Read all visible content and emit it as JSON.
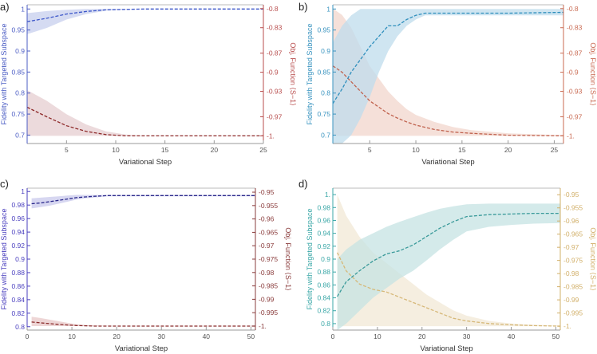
{
  "figure": {
    "panels_count": 4
  },
  "chart_data": [
    {
      "panel_label": "a)",
      "type": "line",
      "xlabel": "Variational Step",
      "ylabel_left": "Fidelity with Targeted Subspace",
      "ylabel_right": "Obj. Function ⟨S−1⟩",
      "xlim": [
        1,
        25
      ],
      "xticks": [
        5,
        10,
        15,
        20,
        25
      ],
      "ylim_left": [
        0.68,
        1.01
      ],
      "yticks_left": [
        0.7,
        0.75,
        0.8,
        0.85,
        0.9,
        0.95,
        1
      ],
      "yticklabels_left": [
        "0.7",
        "0.75",
        "0.8",
        "0.85",
        "0.9",
        "0.95",
        "1"
      ],
      "ylim_right": [
        -1.012,
        -0.794
      ],
      "yticks_right": [
        -1.0,
        -0.97,
        -0.93,
        -0.9,
        -0.87,
        -0.83,
        -0.8
      ],
      "yticklabels_right": [
        "-1.",
        "-0.97",
        "-0.93",
        "-0.9",
        "-0.87",
        "-0.83",
        "-0.8"
      ],
      "colors": {
        "fidelity": "#3b55c9",
        "fidelity_band": "#c7cfee",
        "objective": "#8e2a2a",
        "objective_band": "#e6cdd0",
        "left_axis": "#4b5cc4",
        "right_axis": "#b84d4d"
      },
      "series": [
        {
          "name": "Fidelity",
          "axis": "left",
          "x": [
            1,
            3,
            5,
            7,
            9,
            11,
            13,
            15,
            20,
            25
          ],
          "values": [
            0.97,
            0.978,
            0.988,
            0.994,
            0.998,
            0.999,
            1.0,
            1.0,
            1.0,
            1.0
          ],
          "lower": [
            0.94,
            0.955,
            0.975,
            0.988,
            0.996,
            0.999,
            1.0,
            1.0,
            1.0,
            1.0
          ],
          "upper": [
            0.99,
            0.995,
            0.998,
            1.0,
            1.0,
            1.0,
            1.0,
            1.0,
            1.0,
            1.0
          ]
        },
        {
          "name": "Objective",
          "axis": "right",
          "x": [
            1,
            3,
            5,
            7,
            9,
            11,
            13,
            15,
            20,
            25
          ],
          "values": [
            -0.955,
            -0.97,
            -0.984,
            -0.993,
            -0.998,
            -1.0,
            -1.0,
            -1.0,
            -1.0,
            -1.0
          ],
          "lower": [
            -1.0,
            -1.0,
            -1.0,
            -1.0,
            -1.0,
            -1.0,
            -1.0,
            -1.0,
            -1.0,
            -1.0
          ],
          "upper": [
            -0.928,
            -0.945,
            -0.966,
            -0.982,
            -0.993,
            -0.998,
            -1.0,
            -1.0,
            -1.0,
            -1.0
          ]
        }
      ]
    },
    {
      "panel_label": "b)",
      "type": "line",
      "xlabel": "Variational Step",
      "ylabel_left": "Fidelity with Targeted Subspace",
      "ylabel_right": "Obj. Function ⟨S−1⟩",
      "xlim": [
        1,
        26
      ],
      "xticks": [
        5,
        10,
        15,
        20,
        25
      ],
      "ylim_left": [
        0.68,
        1.01
      ],
      "yticks_left": [
        0.7,
        0.75,
        0.8,
        0.85,
        0.9,
        0.95,
        1
      ],
      "yticklabels_left": [
        "0.7",
        "0.75",
        "0.8",
        "0.85",
        "0.9",
        "0.95",
        "1"
      ],
      "ylim_right": [
        -1.012,
        -0.794
      ],
      "yticks_right": [
        -1.0,
        -0.97,
        -0.93,
        -0.9,
        -0.87,
        -0.83,
        -0.8
      ],
      "yticklabels_right": [
        "-1.",
        "-0.97",
        "-0.93",
        "-0.9",
        "-0.87",
        "-0.83",
        "-0.8"
      ],
      "colors": {
        "fidelity": "#2f8fbd",
        "fidelity_band": "#bfdcec",
        "objective": "#c0624e",
        "objective_band": "#f2d6cc",
        "left_axis": "#3a94c0",
        "right_axis": "#c96a52"
      },
      "series": [
        {
          "name": "Fidelity",
          "axis": "left",
          "x": [
            1,
            2,
            3,
            4,
            5,
            6,
            7,
            8,
            9,
            10,
            11,
            13,
            16,
            20,
            26
          ],
          "values": [
            0.775,
            0.81,
            0.85,
            0.88,
            0.91,
            0.935,
            0.96,
            0.96,
            0.975,
            0.985,
            0.99,
            0.99,
            0.99,
            0.99,
            0.992
          ],
          "lower": [
            0.68,
            0.68,
            0.7,
            0.74,
            0.79,
            0.85,
            0.9,
            0.935,
            0.96,
            0.975,
            0.985,
            0.985,
            0.985,
            0.985,
            0.985
          ],
          "upper": [
            0.92,
            0.96,
            0.985,
            1.0,
            1.0,
            1.0,
            1.0,
            1.0,
            1.0,
            1.0,
            1.0,
            1.0,
            1.0,
            1.0,
            1.0
          ]
        },
        {
          "name": "Objective",
          "axis": "right",
          "x": [
            1,
            2,
            3,
            4,
            5,
            6,
            7,
            8,
            9,
            10,
            12,
            14,
            16,
            20,
            26
          ],
          "values": [
            -0.89,
            -0.9,
            -0.915,
            -0.93,
            -0.945,
            -0.955,
            -0.965,
            -0.972,
            -0.978,
            -0.983,
            -0.99,
            -0.994,
            -0.996,
            -0.999,
            -1.0
          ],
          "lower": [
            -1.0,
            -1.0,
            -1.0,
            -1.0,
            -1.0,
            -1.0,
            -1.0,
            -1.0,
            -1.0,
            -1.0,
            -1.0,
            -1.0,
            -1.0,
            -1.0,
            -1.0
          ],
          "upper": [
            -0.8,
            -0.81,
            -0.83,
            -0.86,
            -0.89,
            -0.91,
            -0.93,
            -0.945,
            -0.958,
            -0.967,
            -0.978,
            -0.986,
            -0.991,
            -0.996,
            -0.999
          ]
        }
      ]
    },
    {
      "panel_label": "c)",
      "type": "line",
      "xlabel": "Variational Step",
      "ylabel_left": "Fidelity with Targeted Subspace",
      "ylabel_right": "Obj. Function ⟨S−1⟩",
      "xlim": [
        0,
        51
      ],
      "xticks": [
        0,
        10,
        20,
        30,
        40,
        50
      ],
      "ylim_left": [
        0.795,
        1.005
      ],
      "yticks_left": [
        0.8,
        0.82,
        0.84,
        0.86,
        0.88,
        0.9,
        0.92,
        0.94,
        0.96,
        0.98,
        1
      ],
      "yticklabels_left": [
        "0.8",
        "0.82",
        "0.84",
        "0.86",
        "0.88",
        "0.9",
        "0.92",
        "0.94",
        "0.96",
        "0.98",
        "1"
      ],
      "ylim_right": [
        -1.0015,
        -0.9485
      ],
      "yticks_right": [
        -1.0,
        -0.995,
        -0.99,
        -0.985,
        -0.98,
        -0.975,
        -0.97,
        -0.965,
        -0.96,
        -0.955,
        -0.95
      ],
      "yticklabels_right": [
        "-1.",
        "-0.995",
        "-0.99",
        "-0.985",
        "-0.98",
        "-0.975",
        "-0.97",
        "-0.965",
        "-0.96",
        "-0.955",
        "-0.95"
      ],
      "colors": {
        "fidelity": "#2c2a8c",
        "fidelity_band": "#c9c9ec",
        "objective": "#8a2c2c",
        "objective_band": "#e8c8c8",
        "left_axis": "#4a3fbf",
        "right_axis": "#8a3c3c"
      },
      "series": [
        {
          "name": "Fidelity",
          "axis": "left",
          "x": [
            1,
            3,
            5,
            7,
            9,
            11,
            13,
            15,
            18,
            22,
            30,
            40,
            51
          ],
          "values": [
            0.982,
            0.983,
            0.985,
            0.987,
            0.989,
            0.991,
            0.992,
            0.993,
            0.994,
            0.994,
            0.994,
            0.994,
            0.994
          ],
          "lower": [
            0.975,
            0.977,
            0.979,
            0.982,
            0.985,
            0.988,
            0.99,
            0.991,
            0.993,
            0.993,
            0.993,
            0.993,
            0.993
          ],
          "upper": [
            0.99,
            0.991,
            0.992,
            0.993,
            0.994,
            0.995,
            0.995,
            0.995,
            0.995,
            0.995,
            0.995,
            0.995,
            0.995
          ]
        },
        {
          "name": "Objective",
          "axis": "right",
          "x": [
            1,
            3,
            5,
            7,
            9,
            11,
            13,
            15,
            20,
            30,
            40,
            51
          ],
          "values": [
            -0.9985,
            -0.9988,
            -0.9991,
            -0.9994,
            -0.9996,
            -0.9998,
            -0.9999,
            -1.0,
            -1.0,
            -1.0,
            -1.0,
            -1.0
          ],
          "lower": [
            -1.0,
            -1.0,
            -1.0,
            -1.0,
            -1.0,
            -1.0,
            -1.0,
            -1.0,
            -1.0,
            -1.0,
            -1.0,
            -1.0
          ],
          "upper": [
            -0.9965,
            -0.997,
            -0.9976,
            -0.9982,
            -0.9988,
            -0.9993,
            -0.9996,
            -0.9998,
            -1.0,
            -1.0,
            -1.0,
            -1.0
          ]
        }
      ]
    },
    {
      "panel_label": "d)",
      "type": "line",
      "xlabel": "Variational Step",
      "ylabel_left": "Fidelity with Targeted Subspace",
      "ylabel_right": "Obj. Function ⟨S−1⟩",
      "xlim": [
        0,
        51
      ],
      "xticks": [
        0,
        10,
        20,
        30,
        40,
        50
      ],
      "ylim_left": [
        0.79,
        1.01
      ],
      "yticks_left": [
        0.8,
        0.82,
        0.84,
        0.86,
        0.88,
        0.9,
        0.92,
        0.94,
        0.96,
        0.98,
        1
      ],
      "yticklabels_left": [
        "0.8",
        "0.82",
        "0.84",
        "0.86",
        "0.88",
        "0.9",
        "0.92",
        "0.94",
        "0.96",
        "0.98",
        "1."
      ],
      "ylim_right": [
        -1.0015,
        -0.9475
      ],
      "yticks_right": [
        -1.0,
        -0.995,
        -0.99,
        -0.985,
        -0.98,
        -0.975,
        -0.97,
        -0.965,
        -0.96,
        -0.955,
        -0.95
      ],
      "yticklabels_right": [
        "-1.",
        "-0.995",
        "-0.99",
        "-0.985",
        "-0.98",
        "-0.975",
        "-0.97",
        "-0.965",
        "-0.96",
        "-0.955",
        "-0.95"
      ],
      "colors": {
        "fidelity": "#3a9a9a",
        "fidelity_band": "#c6e3e3",
        "objective": "#d6b878",
        "objective_band": "#f1e8d6",
        "left_axis": "#3aa7a7",
        "right_axis": "#d2b06a"
      },
      "series": [
        {
          "name": "Fidelity",
          "axis": "left",
          "x": [
            1,
            3,
            6,
            9,
            12,
            15,
            18,
            21,
            24,
            27,
            30,
            35,
            40,
            45,
            51
          ],
          "values": [
            0.842,
            0.865,
            0.882,
            0.897,
            0.908,
            0.913,
            0.922,
            0.935,
            0.948,
            0.958,
            0.966,
            0.969,
            0.97,
            0.971,
            0.971
          ],
          "lower": [
            0.79,
            0.8,
            0.82,
            0.84,
            0.855,
            0.87,
            0.882,
            0.898,
            0.915,
            0.93,
            0.943,
            0.95,
            0.953,
            0.955,
            0.956
          ],
          "upper": [
            0.9,
            0.915,
            0.93,
            0.94,
            0.95,
            0.958,
            0.965,
            0.972,
            0.978,
            0.982,
            0.985,
            0.986,
            0.986,
            0.986,
            0.986
          ]
        },
        {
          "name": "Objective",
          "axis": "right",
          "x": [
            1,
            3,
            6,
            9,
            12,
            15,
            18,
            21,
            24,
            27,
            30,
            35,
            40,
            45,
            51
          ],
          "values": [
            -0.972,
            -0.979,
            -0.984,
            -0.986,
            -0.987,
            -0.989,
            -0.991,
            -0.993,
            -0.995,
            -0.997,
            -0.998,
            -0.999,
            -0.9995,
            -0.9998,
            -1.0
          ],
          "lower": [
            -1.0,
            -1.0,
            -1.0,
            -1.0,
            -1.0,
            -1.0,
            -1.0,
            -1.0,
            -1.0,
            -1.0,
            -1.0,
            -1.0,
            -1.0,
            -1.0,
            -1.0
          ],
          "upper": [
            -0.95,
            -0.958,
            -0.966,
            -0.972,
            -0.976,
            -0.98,
            -0.984,
            -0.988,
            -0.991,
            -0.994,
            -0.996,
            -0.998,
            -0.999,
            -0.9995,
            -0.9998
          ]
        }
      ]
    }
  ]
}
